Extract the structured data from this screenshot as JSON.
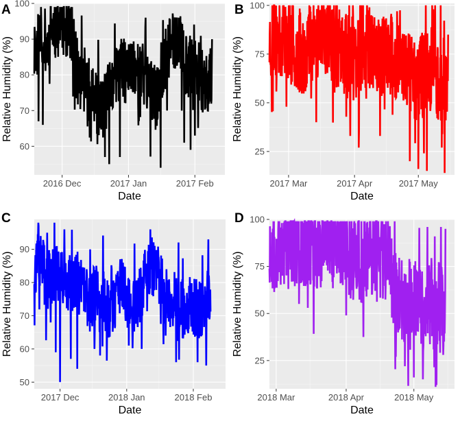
{
  "chart_data": [
    {
      "type": "line",
      "panel_label": "A",
      "xlabel": "Date",
      "ylabel": "Relative Humidity (%)",
      "color": "#000000",
      "x_range": [
        "2016-11-18",
        "2017-02-15"
      ],
      "ylim": [
        52,
        100
      ],
      "y_ticks": [
        60,
        70,
        80,
        90,
        100
      ],
      "x_ticks": [
        {
          "date": "2016-12-01",
          "label": "2016 Dec"
        },
        {
          "date": "2017-01-01",
          "label": "2017 Jan"
        },
        {
          "date": "2017-02-01",
          "label": "2017 Feb"
        }
      ],
      "anchors": [
        [
          0,
          85
        ],
        [
          2,
          90
        ],
        [
          4,
          92
        ],
        [
          6,
          88
        ],
        [
          8,
          93
        ],
        [
          10,
          92
        ],
        [
          12,
          95
        ],
        [
          14,
          94
        ],
        [
          16,
          93
        ],
        [
          18,
          92
        ],
        [
          19,
          85
        ],
        [
          21,
          78
        ],
        [
          23,
          79
        ],
        [
          25,
          76
        ],
        [
          27,
          75
        ],
        [
          29,
          72
        ],
        [
          31,
          70
        ],
        [
          33,
          72
        ],
        [
          35,
          75
        ],
        [
          37,
          78
        ],
        [
          39,
          80
        ],
        [
          41,
          82
        ],
        [
          43,
          80
        ],
        [
          45,
          82
        ],
        [
          47,
          83
        ],
        [
          49,
          80
        ],
        [
          51,
          80
        ],
        [
          53,
          78
        ],
        [
          55,
          75
        ],
        [
          57,
          73
        ],
        [
          59,
          80
        ],
        [
          61,
          84
        ],
        [
          63,
          87
        ],
        [
          65,
          90
        ],
        [
          67,
          90
        ],
        [
          69,
          86
        ],
        [
          71,
          83
        ],
        [
          73,
          82
        ],
        [
          75,
          82
        ],
        [
          77,
          80
        ],
        [
          79,
          78
        ],
        [
          81,
          78
        ],
        [
          83,
          80
        ]
      ],
      "amplitude": 9,
      "seed": 11,
      "extremes": [
        [
          2,
          67
        ],
        [
          4,
          66
        ],
        [
          11,
          99
        ],
        [
          13,
          99
        ],
        [
          16,
          99
        ],
        [
          24,
          81
        ],
        [
          27,
          74
        ],
        [
          33,
          57
        ],
        [
          35,
          55
        ],
        [
          40,
          57
        ],
        [
          50,
          83
        ],
        [
          52,
          96
        ],
        [
          59,
          54
        ],
        [
          62,
          70
        ],
        [
          66,
          96
        ],
        [
          70,
          61
        ],
        [
          73,
          59
        ],
        [
          75,
          63
        ],
        [
          81,
          70
        ],
        [
          83,
          90
        ]
      ]
    },
    {
      "type": "line",
      "panel_label": "B",
      "xlabel": "Date",
      "ylabel": "Relative Humidity (%)",
      "color": "#ff0000",
      "x_range": [
        "2017-02-20",
        "2017-05-18"
      ],
      "ylim": [
        13,
        101
      ],
      "y_ticks": [
        25,
        50,
        75,
        100
      ],
      "x_ticks": [
        {
          "date": "2017-03-01",
          "label": "2017 Mar"
        },
        {
          "date": "2017-04-01",
          "label": "2017 Apr"
        },
        {
          "date": "2017-05-01",
          "label": "2017 May"
        }
      ],
      "anchors": [
        [
          0,
          82
        ],
        [
          4,
          84
        ],
        [
          8,
          84
        ],
        [
          12,
          78
        ],
        [
          16,
          76
        ],
        [
          20,
          82
        ],
        [
          24,
          88
        ],
        [
          28,
          85
        ],
        [
          32,
          78
        ],
        [
          36,
          74
        ],
        [
          40,
          72
        ],
        [
          44,
          80
        ],
        [
          48,
          78
        ],
        [
          52,
          74
        ],
        [
          56,
          76
        ],
        [
          60,
          70
        ],
        [
          64,
          70
        ],
        [
          68,
          62
        ],
        [
          72,
          65
        ],
        [
          76,
          68
        ],
        [
          80,
          62
        ],
        [
          84,
          62
        ]
      ],
      "amplitude": 22,
      "seed": 23,
      "extremes": [
        [
          8,
          48
        ],
        [
          10,
          95
        ],
        [
          22,
          40
        ],
        [
          26,
          98
        ],
        [
          30,
          98
        ],
        [
          38,
          33
        ],
        [
          42,
          27
        ],
        [
          47,
          99
        ],
        [
          52,
          33
        ],
        [
          60,
          97
        ],
        [
          66,
          20
        ],
        [
          70,
          16
        ],
        [
          74,
          15
        ],
        [
          77,
          98
        ],
        [
          81,
          27
        ],
        [
          84,
          85
        ]
      ]
    },
    {
      "type": "line",
      "panel_label": "C",
      "xlabel": "Date",
      "ylabel": "Relative Humidity (%)",
      "color": "#0000ff",
      "x_range": [
        "2017-11-19",
        "2018-02-16"
      ],
      "ylim": [
        48,
        99
      ],
      "y_ticks": [
        50,
        60,
        70,
        80,
        90
      ],
      "x_ticks": [
        {
          "date": "2017-12-01",
          "label": "2017 Dec"
        },
        {
          "date": "2018-01-01",
          "label": "2018 Jan"
        },
        {
          "date": "2018-02-01",
          "label": "2018 Feb"
        }
      ],
      "anchors": [
        [
          0,
          84
        ],
        [
          2,
          86
        ],
        [
          4,
          85
        ],
        [
          6,
          80
        ],
        [
          8,
          82
        ],
        [
          10,
          84
        ],
        [
          12,
          80
        ],
        [
          14,
          82
        ],
        [
          16,
          80
        ],
        [
          18,
          78
        ],
        [
          20,
          80
        ],
        [
          22,
          78
        ],
        [
          24,
          76
        ],
        [
          26,
          74
        ],
        [
          28,
          77
        ],
        [
          30,
          78
        ],
        [
          32,
          75
        ],
        [
          34,
          72
        ],
        [
          36,
          70
        ],
        [
          38,
          74
        ],
        [
          40,
          80
        ],
        [
          42,
          78
        ],
        [
          44,
          74
        ],
        [
          46,
          73
        ],
        [
          48,
          74
        ],
        [
          50,
          78
        ],
        [
          52,
          82
        ],
        [
          54,
          85
        ],
        [
          56,
          84
        ],
        [
          58,
          82
        ],
        [
          60,
          78
        ],
        [
          62,
          76
        ],
        [
          64,
          75
        ],
        [
          66,
          74
        ],
        [
          68,
          72
        ],
        [
          70,
          72
        ],
        [
          72,
          74
        ],
        [
          74,
          73
        ],
        [
          76,
          72
        ],
        [
          78,
          72
        ],
        [
          80,
          75
        ],
        [
          82,
          78
        ]
      ],
      "amplitude": 9,
      "seed": 37,
      "extremes": [
        [
          2,
          97
        ],
        [
          6,
          95
        ],
        [
          10,
          59
        ],
        [
          12,
          50
        ],
        [
          14,
          96
        ],
        [
          17,
          57
        ],
        [
          20,
          54
        ],
        [
          26,
          90
        ],
        [
          28,
          60
        ],
        [
          36,
          84
        ],
        [
          44,
          61
        ],
        [
          50,
          60
        ],
        [
          54,
          96
        ],
        [
          56,
          91
        ],
        [
          60,
          68
        ],
        [
          66,
          56
        ],
        [
          72,
          79
        ],
        [
          76,
          56
        ],
        [
          80,
          55
        ],
        [
          81,
          93
        ]
      ]
    },
    {
      "type": "line",
      "panel_label": "D",
      "xlabel": "Date",
      "ylabel": "Relative Humidity (%)",
      "color": "#a020f0",
      "x_range": [
        "2018-02-26",
        "2018-05-19"
      ],
      "ylim": [
        10,
        100
      ],
      "y_ticks": [
        25,
        50,
        75,
        100
      ],
      "x_ticks": [
        {
          "date": "2018-03-01",
          "label": "2018 Mar"
        },
        {
          "date": "2018-04-01",
          "label": "2018 Apr"
        },
        {
          "date": "2018-05-01",
          "label": "2018 May"
        }
      ],
      "anchors": [
        [
          0,
          86
        ],
        [
          4,
          86
        ],
        [
          8,
          87
        ],
        [
          12,
          88
        ],
        [
          16,
          88
        ],
        [
          20,
          88
        ],
        [
          24,
          88
        ],
        [
          28,
          90
        ],
        [
          32,
          90
        ],
        [
          34,
          84
        ],
        [
          36,
          82
        ],
        [
          38,
          80
        ],
        [
          40,
          78
        ],
        [
          44,
          82
        ],
        [
          48,
          84
        ],
        [
          52,
          80
        ],
        [
          54,
          74
        ],
        [
          56,
          62
        ],
        [
          58,
          58
        ],
        [
          60,
          55
        ],
        [
          64,
          55
        ],
        [
          68,
          55
        ],
        [
          72,
          55
        ],
        [
          76,
          52
        ],
        [
          78,
          48
        ]
      ],
      "amplitude": 25,
      "seed": 53,
      "extremes": [
        [
          3,
          64
        ],
        [
          6,
          95
        ],
        [
          22,
          95
        ],
        [
          34,
          49
        ],
        [
          38,
          98
        ],
        [
          43,
          59
        ],
        [
          47,
          98
        ],
        [
          53,
          95
        ],
        [
          56,
          27
        ],
        [
          60,
          22
        ],
        [
          64,
          16
        ],
        [
          68,
          15
        ],
        [
          70,
          96
        ],
        [
          74,
          12
        ],
        [
          76,
          96
        ],
        [
          77,
          28
        ],
        [
          78,
          95
        ]
      ]
    }
  ]
}
